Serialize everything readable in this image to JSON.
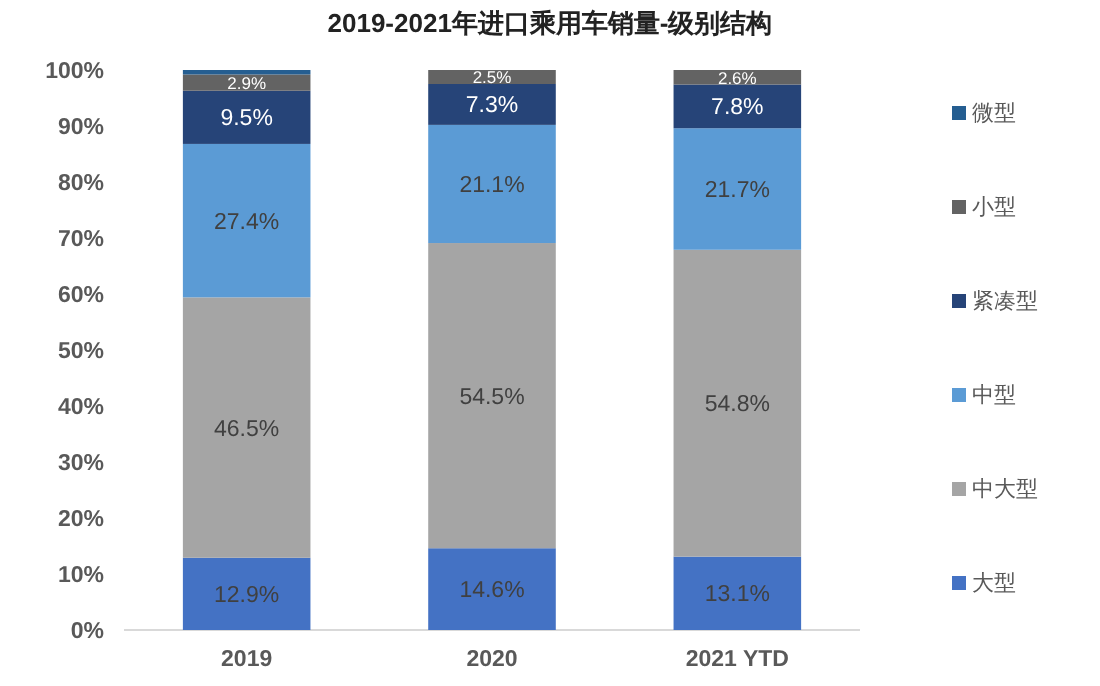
{
  "chart_data": {
    "type": "bar",
    "stacked": true,
    "title": "2019-2021年进口乘用车销量-级别结构",
    "categories": [
      "2019",
      "2020",
      "2021 YTD"
    ],
    "series": [
      {
        "name": "大型",
        "color": "#4472c4",
        "values": [
          12.9,
          14.6,
          13.1
        ],
        "value_labels": [
          "12.9%",
          "14.6%",
          "13.1%"
        ]
      },
      {
        "name": "中大型",
        "color": "#a5a5a5",
        "values": [
          46.5,
          54.5,
          54.8
        ],
        "value_labels": [
          "46.5%",
          "54.5%",
          "54.8%"
        ]
      },
      {
        "name": "中型",
        "color": "#5b9bd5",
        "values": [
          27.4,
          21.1,
          21.7
        ],
        "value_labels": [
          "27.4%",
          "21.1%",
          "21.7%"
        ]
      },
      {
        "name": "紧凑型",
        "color": "#264478",
        "values": [
          9.5,
          7.3,
          7.8
        ],
        "value_labels": [
          "9.5%",
          "7.3%",
          "7.8%"
        ]
      },
      {
        "name": "小型",
        "color": "#636363",
        "values": [
          2.9,
          2.5,
          2.6
        ],
        "value_labels": [
          "2.9%",
          "2.5%",
          "2.6%"
        ]
      },
      {
        "name": "微型",
        "color": "#255e91",
        "values": [
          0.8,
          0,
          0
        ],
        "value_labels": [
          null,
          null,
          null
        ]
      }
    ],
    "ylim": [
      0,
      100
    ],
    "yticks": [
      {
        "value": 0,
        "label": "0%"
      },
      {
        "value": 10,
        "label": "10%"
      },
      {
        "value": 20,
        "label": "20%"
      },
      {
        "value": 30,
        "label": "30%"
      },
      {
        "value": 40,
        "label": "40%"
      },
      {
        "value": 50,
        "label": "50%"
      },
      {
        "value": 60,
        "label": "60%"
      },
      {
        "value": 70,
        "label": "70%"
      },
      {
        "value": 80,
        "label": "80%"
      },
      {
        "value": 90,
        "label": "90%"
      },
      {
        "value": 100,
        "label": "100%"
      }
    ],
    "legend": "right",
    "grid": false
  }
}
